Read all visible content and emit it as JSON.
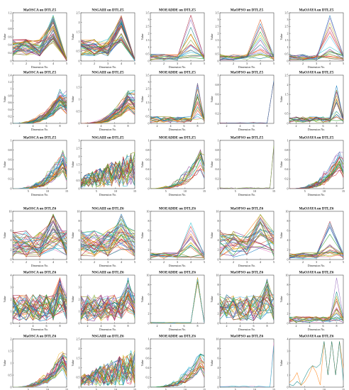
{
  "figure": {
    "rows": 6,
    "cols": 5,
    "xlabel": "Dimension No.",
    "ylabel": "Value"
  },
  "chart_data": [
    {
      "type": "line",
      "title": "MaOSCA on DTLZ5",
      "xlabel": "Dimension No.",
      "ylabel": "Value",
      "xlim": [
        1,
        5
      ],
      "ylim": [
        0,
        1.2
      ],
      "xticks": [
        1,
        2,
        3,
        4,
        5
      ],
      "yticks": [
        0,
        0.2,
        0.4,
        0.6,
        0.8,
        1,
        1.2
      ],
      "peak_dim": 4,
      "shape": "peak",
      "n_series": 40
    },
    {
      "type": "line",
      "title": "NSGAIII on DTLZ5",
      "xlabel": "Dimension No.",
      "ylabel": "Value",
      "xlim": [
        1,
        5
      ],
      "ylim": [
        0,
        2.5
      ],
      "xticks": [
        1,
        2,
        3,
        4,
        5
      ],
      "yticks": [
        0,
        0.5,
        1,
        1.5,
        2,
        2.5
      ],
      "peak_dim": 4,
      "shape": "peak",
      "n_series": 40
    },
    {
      "type": "line",
      "title": "MOEADDE on DTLZ5",
      "xlabel": "Dimension No.",
      "ylabel": "Value",
      "xlim": [
        1,
        5
      ],
      "ylim": [
        0,
        3.5
      ],
      "xticks": [
        1,
        2,
        3,
        4,
        5
      ],
      "yticks": [
        0,
        0.5,
        1,
        1.5,
        2,
        2.5,
        3,
        3.5
      ],
      "peak_dim": 4,
      "shape": "sparse",
      "n_series": 18
    },
    {
      "type": "line",
      "title": "MaOPSO on DTLZ5",
      "xlabel": "Dimension No.",
      "ylabel": "Value",
      "xlim": [
        1,
        5
      ],
      "ylim": [
        0,
        3.5
      ],
      "xticks": [
        1,
        2,
        3,
        4,
        5
      ],
      "yticks": [
        0,
        0.5,
        1,
        1.5,
        2,
        2.5,
        3,
        3.5
      ],
      "peak_dim": 4,
      "shape": "sparse",
      "n_series": 18
    },
    {
      "type": "line",
      "title": "MaOJAYA on DTLZ5",
      "xlabel": "Dimension No.",
      "ylabel": "Value",
      "xlim": [
        1,
        5
      ],
      "ylim": [
        0,
        3.5
      ],
      "xticks": [
        1,
        2,
        3,
        4,
        5
      ],
      "yticks": [
        0,
        0.5,
        1,
        1.5,
        2,
        2.5,
        3,
        3.5
      ],
      "peak_dim": 4,
      "shape": "sparse",
      "n_series": 18
    },
    {
      "type": "line",
      "title": "MaOSCA on DTLZ5",
      "xlabel": "Dimension No.",
      "ylabel": "Value",
      "xlim": [
        1,
        9
      ],
      "ylim": [
        0,
        1.4
      ],
      "xticks": [
        2,
        4,
        6,
        8
      ],
      "yticks": [
        0,
        0.2,
        0.4,
        0.6,
        0.8,
        1,
        1.2,
        1.4
      ],
      "peak_dim": 8,
      "shape": "rise",
      "n_series": 40
    },
    {
      "type": "line",
      "title": "NSGAIII on DTLZ5",
      "xlabel": "Dimension No.",
      "ylabel": "Value",
      "xlim": [
        1,
        9
      ],
      "ylim": [
        0,
        2
      ],
      "xticks": [
        2,
        4,
        6,
        8
      ],
      "yticks": [
        0,
        0.5,
        1,
        1.5,
        2
      ],
      "peak_dim": 8,
      "shape": "rise",
      "n_series": 40
    },
    {
      "type": "line",
      "title": "MOEADDE on DTLZ5",
      "xlabel": "Dimension No.",
      "ylabel": "Value",
      "xlim": [
        1,
        9
      ],
      "ylim": [
        0,
        3.5
      ],
      "xticks": [
        2,
        4,
        6,
        8
      ],
      "yticks": [
        0,
        0.5,
        1,
        1.5,
        2,
        2.5,
        3,
        3.5
      ],
      "peak_dim": 8,
      "shape": "sparse",
      "n_series": 18
    },
    {
      "type": "line",
      "title": "MaOPSO on DTLZ5",
      "xlabel": "Dimension No.",
      "ylabel": "Value",
      "xlim": [
        1,
        9
      ],
      "ylim": [
        0,
        1
      ],
      "xticks": [
        2,
        4,
        6,
        8
      ],
      "yticks": [
        0,
        0.2,
        0.4,
        0.6,
        0.8,
        1
      ],
      "peak_dim": 9,
      "shape": "spike",
      "n_series": 2
    },
    {
      "type": "line",
      "title": "MaOJAYA on DTLZ5",
      "xlabel": "Dimension No.",
      "ylabel": "Value",
      "xlim": [
        1,
        9
      ],
      "ylim": [
        0,
        2.5
      ],
      "xticks": [
        2,
        4,
        6,
        8
      ],
      "yticks": [
        0,
        0.5,
        1,
        1.5,
        2,
        2.5
      ],
      "peak_dim": 8,
      "shape": "sparse",
      "n_series": 18
    },
    {
      "type": "line",
      "title": "MaOSCA on DTLZ5",
      "xlabel": "Dimension No.",
      "ylabel": "Value",
      "xlim": [
        1,
        15
      ],
      "ylim": [
        0,
        1
      ],
      "xticks": [
        5,
        10,
        15
      ],
      "yticks": [
        0,
        0.2,
        0.4,
        0.6,
        0.8,
        1
      ],
      "peak_dim": 14,
      "shape": "rise",
      "n_series": 30
    },
    {
      "type": "line",
      "title": "NSGAIII on DTLZ5",
      "xlabel": "Dimension No.",
      "ylabel": "Value",
      "xlim": [
        1,
        15
      ],
      "ylim": [
        0,
        3
      ],
      "xticks": [
        5,
        10,
        15
      ],
      "yticks": [
        0,
        0.5,
        1,
        1.5,
        2,
        2.5,
        3
      ],
      "peak_dim": 14,
      "shape": "zigzag",
      "n_series": 30
    },
    {
      "type": "line",
      "title": "MOEADDE on DTLZ5",
      "xlabel": "Dimension No.",
      "ylabel": "Value",
      "xlim": [
        1,
        15
      ],
      "ylim": [
        0,
        1
      ],
      "xticks": [
        5,
        10,
        15
      ],
      "yticks": [
        0,
        0.2,
        0.4,
        0.6,
        0.8,
        1
      ],
      "peak_dim": 14,
      "shape": "rise",
      "n_series": 18
    },
    {
      "type": "line",
      "title": "MaOPSO on DTLZ5",
      "xlabel": "Dimension No.",
      "ylabel": "Value",
      "xlim": [
        1,
        15
      ],
      "ylim": [
        0,
        1
      ],
      "xticks": [
        5,
        10,
        15
      ],
      "yticks": [
        0,
        0.2,
        0.4,
        0.6,
        0.8,
        1
      ],
      "peak_dim": 15,
      "shape": "spike",
      "n_series": 2
    },
    {
      "type": "line",
      "title": "MaOJAYA on DTLZ5",
      "xlabel": "Dimension No.",
      "ylabel": "Value",
      "xlim": [
        1,
        15
      ],
      "ylim": [
        0,
        1
      ],
      "xticks": [
        5,
        10,
        15
      ],
      "yticks": [
        0,
        0.2,
        0.4,
        0.6,
        0.8,
        1
      ],
      "peak_dim": 14,
      "shape": "rise",
      "n_series": 24
    },
    {
      "type": "line",
      "title": "MaOSCA on DTLZ6",
      "xlabel": "Dimension No.",
      "ylabel": "Value",
      "xlim": [
        1,
        5
      ],
      "ylim": [
        0,
        10
      ],
      "xticks": [
        1,
        2,
        3,
        4,
        5
      ],
      "yticks": [
        0,
        2,
        4,
        6,
        8,
        10
      ],
      "peak_dim": 4,
      "shape": "noisy",
      "n_series": 40
    },
    {
      "type": "line",
      "title": "NSGAIII on DTLZ6",
      "xlabel": "Dimension No.",
      "ylabel": "Value",
      "xlim": [
        1,
        5
      ],
      "ylim": [
        0,
        10
      ],
      "xticks": [
        1,
        2,
        3,
        4,
        5
      ],
      "yticks": [
        0,
        2,
        4,
        6,
        8,
        10
      ],
      "peak_dim": 4,
      "shape": "noisy",
      "n_series": 40
    },
    {
      "type": "line",
      "title": "MOEADDE on DTLZ6",
      "xlabel": "Dimension No.",
      "ylabel": "Value",
      "xlim": [
        1,
        5
      ],
      "ylim": [
        0,
        10
      ],
      "xticks": [
        1,
        2,
        3,
        4,
        5
      ],
      "yticks": [
        0,
        2,
        4,
        6,
        8,
        10
      ],
      "peak_dim": 4,
      "shape": "sparse",
      "n_series": 18
    },
    {
      "type": "line",
      "title": "MaOPSO on DTLZ6",
      "xlabel": "Dimension No.",
      "ylabel": "Value",
      "xlim": [
        1,
        5
      ],
      "ylim": [
        0,
        10
      ],
      "xticks": [
        1,
        2,
        3,
        4,
        5
      ],
      "yticks": [
        0,
        2,
        4,
        6,
        8,
        10
      ],
      "peak_dim": 4,
      "shape": "noisy",
      "n_series": 30
    },
    {
      "type": "line",
      "title": "MaOJAYA on DTLZ6",
      "xlabel": "Dimension No.",
      "ylabel": "Value",
      "xlim": [
        1,
        5
      ],
      "ylim": [
        0,
        10
      ],
      "xticks": [
        1,
        2,
        3,
        4,
        5
      ],
      "yticks": [
        0,
        2,
        4,
        6,
        8,
        10
      ],
      "peak_dim": 4,
      "shape": "sparse",
      "n_series": 20
    },
    {
      "type": "line",
      "title": "MaOSCA on DTLZ6",
      "xlabel": "Dimension No.",
      "ylabel": "Value",
      "xlim": [
        1,
        9
      ],
      "ylim": [
        0,
        4
      ],
      "xticks": [
        2,
        4,
        6,
        8
      ],
      "yticks": [
        0,
        1,
        2,
        3,
        4
      ],
      "peak_dim": 8,
      "shape": "noisy",
      "n_series": 40
    },
    {
      "type": "line",
      "title": "NSGAIII on DTLZ6",
      "xlabel": "Dimension No.",
      "ylabel": "Value",
      "xlim": [
        1,
        9
      ],
      "ylim": [
        0,
        4
      ],
      "xticks": [
        2,
        4,
        6,
        8
      ],
      "yticks": [
        0,
        1,
        2,
        3,
        4
      ],
      "peak_dim": 8,
      "shape": "noisy",
      "n_series": 40
    },
    {
      "type": "line",
      "title": "MOEADDE on DTLZ6",
      "xlabel": "Dimension No.",
      "ylabel": "Value",
      "xlim": [
        1,
        9
      ],
      "ylim": [
        0,
        10
      ],
      "xticks": [
        2,
        4,
        6,
        8
      ],
      "yticks": [
        0,
        2,
        4,
        6,
        8,
        10
      ],
      "peak_dim": 8,
      "shape": "spike",
      "n_series": 12
    },
    {
      "type": "line",
      "title": "MaOPSO on DTLZ6",
      "xlabel": "Dimension No.",
      "ylabel": "Value",
      "xlim": [
        1,
        9
      ],
      "ylim": [
        0,
        10
      ],
      "xticks": [
        2,
        4,
        6,
        8
      ],
      "yticks": [
        0,
        2,
        4,
        6,
        8,
        10
      ],
      "peak_dim": 8,
      "shape": "noisy",
      "n_series": 30
    },
    {
      "type": "line",
      "title": "MaOJAYA on DTLZ6",
      "xlabel": "Dimension No.",
      "ylabel": "Value",
      "xlim": [
        1,
        9
      ],
      "ylim": [
        0,
        10
      ],
      "xticks": [
        2,
        4,
        6,
        8
      ],
      "yticks": [
        0,
        2,
        4,
        6,
        8,
        10
      ],
      "peak_dim": 8,
      "shape": "sparse",
      "n_series": 18
    },
    {
      "type": "line",
      "title": "MaOSCA on DTLZ6",
      "xlabel": "Dimension No.",
      "ylabel": "Value",
      "xlim": [
        1,
        15
      ],
      "ylim": [
        0,
        2
      ],
      "xticks": [
        5,
        10,
        15
      ],
      "yticks": [
        0,
        0.5,
        1,
        1.5,
        2
      ],
      "peak_dim": 14,
      "shape": "rise",
      "n_series": 30
    },
    {
      "type": "line",
      "title": "NSGAIII on DTLZ6",
      "xlabel": "Dimension No.",
      "ylabel": "Value",
      "xlim": [
        1,
        15
      ],
      "ylim": [
        0,
        2.5
      ],
      "xticks": [
        5,
        10,
        15
      ],
      "yticks": [
        0,
        0.5,
        1,
        1.5,
        2,
        2.5
      ],
      "peak_dim": 14,
      "shape": "zigzag",
      "n_series": 30
    },
    {
      "type": "line",
      "title": "MOEADDE on DTLZ6",
      "xlabel": "Dimension No.",
      "ylabel": "Value",
      "xlim": [
        1,
        15
      ],
      "ylim": [
        0,
        1
      ],
      "xticks": [
        5,
        10,
        15
      ],
      "yticks": [
        0,
        0.2,
        0.4,
        0.6,
        0.8,
        1
      ],
      "peak_dim": 14,
      "shape": "rise",
      "n_series": 18
    },
    {
      "type": "line",
      "title": "MaOPSO on DTLZ6",
      "xlabel": "Dimension No.",
      "ylabel": "Value",
      "xlim": [
        1,
        15
      ],
      "ylim": [
        0,
        10
      ],
      "xticks": [
        5,
        10,
        15
      ],
      "yticks": [
        0,
        2,
        4,
        6,
        8,
        10
      ],
      "peak_dim": 15,
      "shape": "spike",
      "n_series": 2
    },
    {
      "type": "line",
      "title": "MaOJAYA on DTLZ6",
      "xlabel": "Dimension No.",
      "ylabel": "Value",
      "xlim": [
        1,
        15
      ],
      "ylim": [
        0,
        4
      ],
      "xticks": [
        5,
        10,
        15
      ],
      "yticks": [
        0,
        1,
        2,
        3,
        4
      ],
      "peak_dim": 11,
      "shape": "zigzag",
      "n_series": 2
    }
  ],
  "colors": [
    "#0072BD",
    "#D95319",
    "#EDB120",
    "#7E2F8E",
    "#77AC30",
    "#4DBEEE",
    "#A2142F",
    "#1f77b4",
    "#2ca02c",
    "#d62728",
    "#9467bd",
    "#8c564b",
    "#e377c2",
    "#17becf",
    "#bcbd22",
    "#ff7f0e",
    "#008080",
    "#808000"
  ]
}
